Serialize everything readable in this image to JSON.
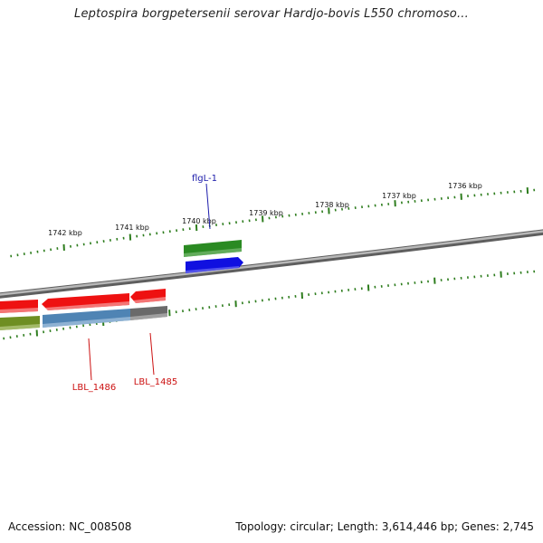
{
  "map": {
    "title": "Leptospira borgpetersenii serovar Hardjo-bovis L550 chromoso...",
    "accession": "Accession: NC_008508",
    "stats": "Topology: circular; Length: 3,614,446 bp; Genes: 2,745",
    "tick_labels": [
      "1742 kbp",
      "1741 kbp",
      "1740 kbp",
      "1739 kbp",
      "1738 kbp",
      "1737 kbp",
      "1736 kbp"
    ],
    "colors": {
      "backbone": "#8c8c8c",
      "ticks": "#2e7d1e",
      "gene_forward": "#2a8a22",
      "gene_blue": "#1010e0",
      "gene_red": "#ee1111",
      "gene_olive": "#6e8e22",
      "gene_steel": "#4f84b4",
      "gene_gray": "#6a6a6a",
      "label_blue": "#1a1aaa",
      "label_red": "#cc1111"
    },
    "genes": [
      {
        "label": "flgL-1",
        "color": "label_blue"
      },
      {
        "label": "LBL_1486",
        "color": "label_red"
      },
      {
        "label": "LBL_1485",
        "color": "label_red"
      }
    ]
  }
}
